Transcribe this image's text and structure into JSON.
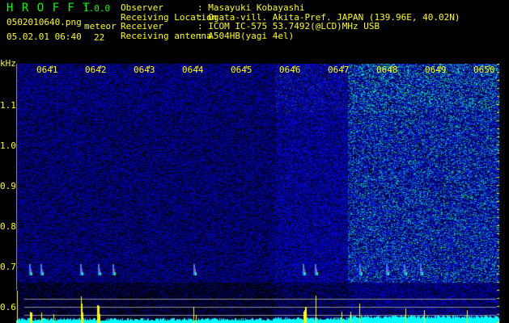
{
  "header": {
    "app_title": "H R O F F T",
    "version": "1.0.0",
    "filename": "0502010640.png",
    "datetime": "05.02.01 06:40",
    "meteor_label": "meteor",
    "meteor_count": "22"
  },
  "info": [
    {
      "label": "Observer",
      "value": ": Masayuki Kobayashi"
    },
    {
      "label": "Receiving Location",
      "value": ": Ogata-vill. Akita-Pref. JAPAN (139.96E, 40.02N)"
    },
    {
      "label": "Receiver",
      "value": ": ICOM IC-575 53.7492(@LCD)MHz USB"
    },
    {
      "label": "Receiving antenna",
      "value": ": A504HB(yagi 4el)"
    }
  ],
  "colors": {
    "text": "#ffff00",
    "title": "#00ff00",
    "noise": "#0000c0",
    "histogram": "#00ffff",
    "spike": "#ffff00"
  },
  "chart_data": {
    "type": "heatmap",
    "ylabel": "kHz",
    "x_ticks": [
      "0641",
      "0642",
      "0643",
      "0644",
      "0645",
      "0646",
      "0647",
      "0648",
      "0649",
      "0650"
    ],
    "y_ticks": [
      "1.1",
      "1.0",
      "0.9",
      "0.8",
      "0.7",
      "0.6"
    ],
    "ylim": [
      0.56,
      1.2
    ],
    "meteor_echo_frequency_khz": 0.67
  }
}
